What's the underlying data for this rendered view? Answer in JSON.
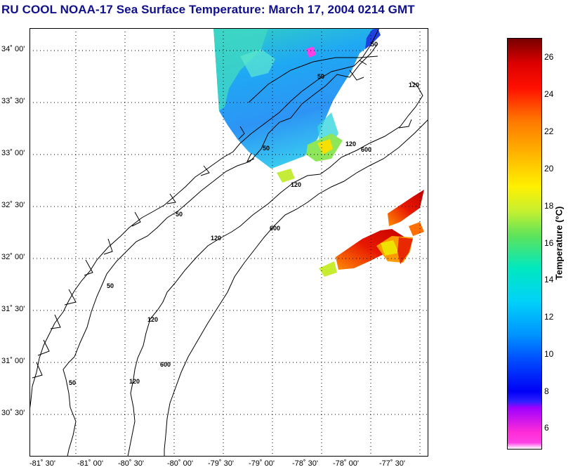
{
  "title": "RU COOL  NOAA-17  Sea Surface Temperature:  March 17, 2004 0214 GMT",
  "lat_labels": [
    "34˚ 00'",
    "33˚ 30'",
    "33˚ 00'",
    "32˚ 30'",
    "32˚ 00'",
    "31˚ 30'",
    "31˚ 00'",
    "30˚ 30'"
  ],
  "lon_labels": [
    "-81˚ 30'",
    "-81˚ 00'",
    "-80˚ 30'",
    "-80˚ 00'",
    "-79˚ 30'",
    "-79˚ 00'",
    "-78˚ 30'",
    "-78˚ 00'",
    "-77˚ 30'"
  ],
  "contour_labels": [
    "50",
    "50",
    "50",
    "50",
    "50",
    "50",
    "120",
    "120",
    "120",
    "120",
    "120",
    "120",
    "600",
    "600",
    "600"
  ],
  "colorbar": {
    "title": "Temperature (°C)",
    "ticks": [
      "26",
      "24",
      "22",
      "20",
      "18",
      "16",
      "14",
      "12",
      "10",
      "8",
      "6"
    ],
    "range": [
      5,
      27
    ]
  },
  "colors": {
    "title": "#10108c",
    "grid": "#000000",
    "cold": "#00b4ff",
    "warm": "#e01000"
  }
}
